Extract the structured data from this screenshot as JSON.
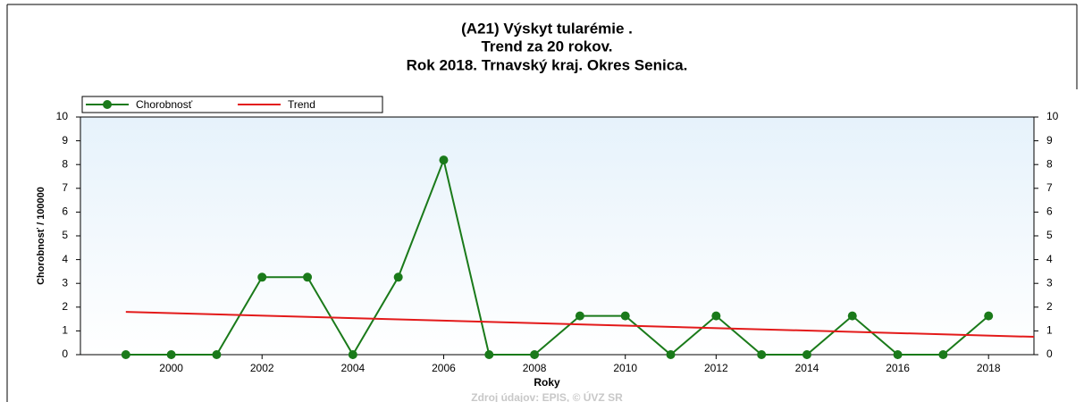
{
  "chart_data": {
    "type": "line",
    "title": [
      "(A21) Výskyt tularémie .",
      "Trend za 20 rokov.",
      "Rok 2018. Trnavský kraj. Okres Senica."
    ],
    "x_label": "Roky",
    "y_label": "Chorobnosť / 100000",
    "source": "Zdroj údajov: EPIS, © ÚVZ SR",
    "x": [
      1999,
      2000,
      2001,
      2002,
      2003,
      2004,
      2005,
      2006,
      2007,
      2008,
      2009,
      2010,
      2011,
      2012,
      2013,
      2014,
      2015,
      2016,
      2017,
      2018
    ],
    "series": [
      {
        "name": "Chorobnosť",
        "color": "#1a7a1a",
        "values": [
          0,
          0,
          0,
          3.26,
          3.26,
          0,
          3.26,
          8.19,
          0,
          0,
          1.63,
          1.63,
          0,
          1.63,
          0,
          0,
          1.63,
          0,
          0,
          1.63
        ]
      },
      {
        "name": "Trend",
        "color": "#e31a1a",
        "x": [
          1999,
          2019
        ],
        "values": [
          1.8,
          0.75
        ]
      }
    ],
    "xlim": [
      1998,
      2019
    ],
    "xticks": [
      2000,
      2002,
      2004,
      2006,
      2008,
      2010,
      2012,
      2014,
      2016,
      2018
    ],
    "ylim": [
      0,
      10
    ],
    "yticks": [
      0,
      1,
      2,
      3,
      4,
      5,
      6,
      7,
      8,
      9,
      10
    ],
    "y2lim": [
      0,
      10
    ],
    "y2ticks": [
      0,
      1,
      2,
      3,
      4,
      5,
      6,
      7,
      8,
      9,
      10
    ],
    "legend": "top-left"
  }
}
